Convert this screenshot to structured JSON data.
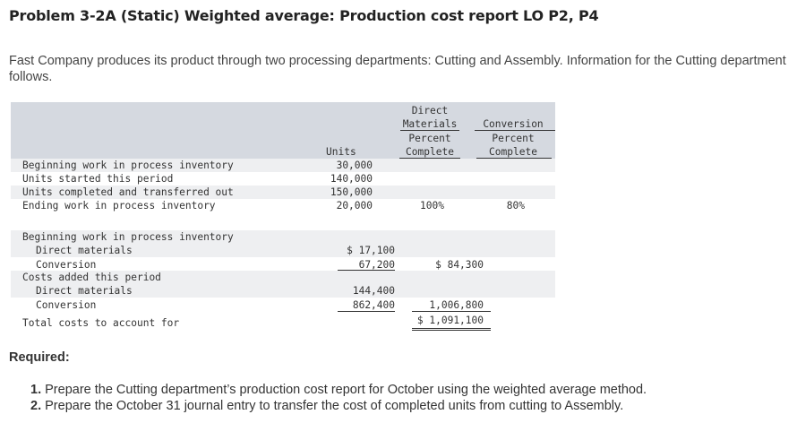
{
  "title": "Problem 3-2A (Static) Weighted average: Production cost report LO P2, P4",
  "intro": "Fast Company produces its product through two processing departments: Cutting and Assembly. Information for the Cutting department follows.",
  "units_table": {
    "headers": {
      "units": "Units",
      "dm_line1": "Direct",
      "dm_line2": "Materials",
      "dm_line3": "Percent",
      "dm_line4": "Complete",
      "conv_line1": "Conversion",
      "conv_line2": "Percent",
      "conv_line3": "Complete"
    },
    "rows": [
      {
        "label": "Beginning work in process inventory",
        "units": "30,000",
        "dm": "",
        "conv": ""
      },
      {
        "label": "Units started this period",
        "units": "140,000",
        "dm": "",
        "conv": ""
      },
      {
        "label": "Units completed and transferred out",
        "units": "150,000",
        "dm": "",
        "conv": ""
      },
      {
        "label": "Ending work in process inventory",
        "units": "20,000",
        "dm": "100%",
        "conv": "80%"
      }
    ]
  },
  "costs_table": {
    "rows": [
      {
        "label": "Beginning work in process inventory",
        "col1": "",
        "col2": ""
      },
      {
        "label": "Direct materials",
        "col1": "$ 17,100",
        "col2": ""
      },
      {
        "label": "Conversion",
        "col1": "67,200",
        "col2": "$ 84,300"
      },
      {
        "label": "Costs added this period",
        "col1": "",
        "col2": ""
      },
      {
        "label": "Direct materials",
        "col1": "144,400",
        "col2": ""
      },
      {
        "label": "Conversion",
        "col1": "862,400",
        "col2": "1,006,800"
      },
      {
        "label": "Total costs to account for",
        "col1": "",
        "col2": "$ 1,091,100"
      }
    ]
  },
  "required": {
    "heading": "Required:",
    "items": [
      {
        "num": "1.",
        "text": "Prepare the Cutting department’s production cost report for October using the weighted average method."
      },
      {
        "num": "2.",
        "text": "Prepare the October 31 journal entry to transfer the cost of completed units from cutting to Assembly."
      }
    ]
  }
}
